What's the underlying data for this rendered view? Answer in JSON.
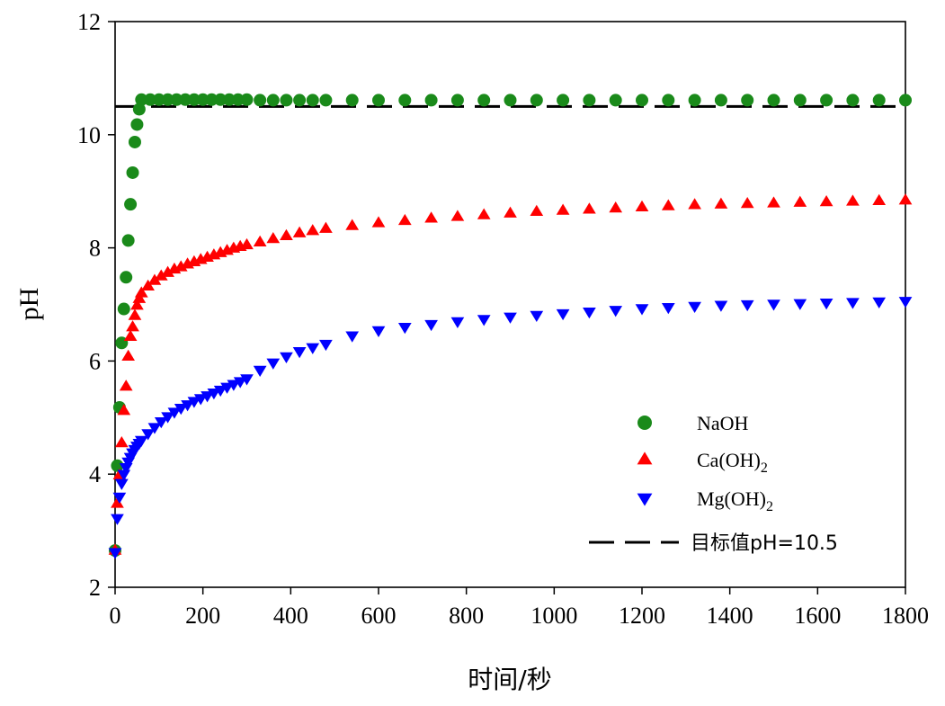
{
  "chart_data": {
    "type": "scatter",
    "xlabel": "时间/秒",
    "ylabel": "pH",
    "xlim": [
      0,
      1800
    ],
    "ylim": [
      2,
      12
    ],
    "xticks": [
      0,
      200,
      400,
      600,
      800,
      1000,
      1200,
      1400,
      1600,
      1800
    ],
    "yticks": [
      2,
      4,
      6,
      8,
      10,
      12
    ],
    "grid": false,
    "legend_position": "bottom-right",
    "series": [
      {
        "name": "NaOH",
        "marker": "circle",
        "color": "#1a8a1a",
        "x": [
          0,
          5,
          10,
          15,
          20,
          25,
          30,
          35,
          40,
          45,
          50,
          55,
          60,
          80,
          100,
          120,
          140,
          160,
          180,
          200,
          220,
          240,
          260,
          280,
          300,
          330,
          360,
          390,
          420,
          450,
          480,
          540,
          600,
          660,
          720,
          780,
          840,
          900,
          960,
          1020,
          1080,
          1140,
          1200,
          1260,
          1320,
          1380,
          1440,
          1500,
          1560,
          1620,
          1680,
          1740,
          1800
        ],
        "y": [
          2.65,
          4.15,
          5.18,
          6.32,
          6.92,
          7.48,
          8.13,
          8.77,
          9.33,
          9.87,
          10.18,
          10.45,
          10.62,
          10.62,
          10.62,
          10.62,
          10.62,
          10.62,
          10.62,
          10.62,
          10.62,
          10.62,
          10.62,
          10.62,
          10.62,
          10.61,
          10.61,
          10.61,
          10.61,
          10.61,
          10.61,
          10.61,
          10.61,
          10.61,
          10.61,
          10.61,
          10.61,
          10.61,
          10.61,
          10.61,
          10.61,
          10.61,
          10.61,
          10.61,
          10.61,
          10.61,
          10.61,
          10.61,
          10.61,
          10.61,
          10.61,
          10.61,
          10.61
        ]
      },
      {
        "name": "Ca(OH)",
        "name_subscript": "2",
        "marker": "triangle-up",
        "color": "#ff0000",
        "x": [
          0,
          5,
          10,
          15,
          20,
          25,
          30,
          35,
          40,
          45,
          50,
          55,
          60,
          75,
          90,
          105,
          120,
          135,
          150,
          165,
          180,
          195,
          210,
          225,
          240,
          255,
          270,
          285,
          300,
          330,
          360,
          390,
          420,
          450,
          480,
          540,
          600,
          660,
          720,
          780,
          840,
          900,
          960,
          1020,
          1080,
          1140,
          1200,
          1260,
          1320,
          1380,
          1440,
          1500,
          1560,
          1620,
          1680,
          1740,
          1800
        ],
        "y": [
          2.65,
          3.48,
          3.98,
          4.55,
          5.12,
          5.55,
          6.08,
          6.43,
          6.6,
          6.8,
          6.98,
          7.1,
          7.2,
          7.32,
          7.42,
          7.5,
          7.56,
          7.62,
          7.66,
          7.71,
          7.75,
          7.79,
          7.83,
          7.87,
          7.91,
          7.95,
          7.99,
          8.02,
          8.05,
          8.1,
          8.16,
          8.21,
          8.26,
          8.3,
          8.34,
          8.39,
          8.44,
          8.48,
          8.52,
          8.55,
          8.58,
          8.61,
          8.64,
          8.66,
          8.68,
          8.7,
          8.72,
          8.74,
          8.76,
          8.77,
          8.78,
          8.79,
          8.8,
          8.81,
          8.82,
          8.83,
          8.84
        ]
      },
      {
        "name": "Mg(OH)",
        "name_subscript": "2",
        "marker": "triangle-down",
        "color": "#0000ff",
        "x": [
          0,
          5,
          10,
          15,
          20,
          25,
          30,
          35,
          40,
          45,
          50,
          55,
          60,
          75,
          90,
          105,
          120,
          135,
          150,
          165,
          180,
          195,
          210,
          225,
          240,
          255,
          270,
          285,
          300,
          330,
          360,
          390,
          420,
          450,
          480,
          540,
          600,
          660,
          720,
          780,
          840,
          900,
          960,
          1020,
          1080,
          1140,
          1200,
          1260,
          1320,
          1380,
          1440,
          1500,
          1560,
          1620,
          1680,
          1740,
          1800
        ],
        "y": [
          2.62,
          3.22,
          3.6,
          3.84,
          4.0,
          4.12,
          4.22,
          4.3,
          4.38,
          4.44,
          4.5,
          4.55,
          4.6,
          4.72,
          4.83,
          4.93,
          5.02,
          5.1,
          5.17,
          5.23,
          5.29,
          5.34,
          5.39,
          5.44,
          5.49,
          5.54,
          5.59,
          5.64,
          5.69,
          5.84,
          5.97,
          6.08,
          6.17,
          6.24,
          6.3,
          6.45,
          6.54,
          6.6,
          6.65,
          6.7,
          6.74,
          6.78,
          6.81,
          6.84,
          6.87,
          6.9,
          6.93,
          6.95,
          6.97,
          6.99,
          7.0,
          7.01,
          7.02,
          7.03,
          7.04,
          7.05,
          7.06
        ]
      }
    ],
    "reference_lines": [
      {
        "name": "目标值pH=10.5",
        "y": 10.5,
        "style": "dashed",
        "color": "#000000"
      }
    ]
  }
}
